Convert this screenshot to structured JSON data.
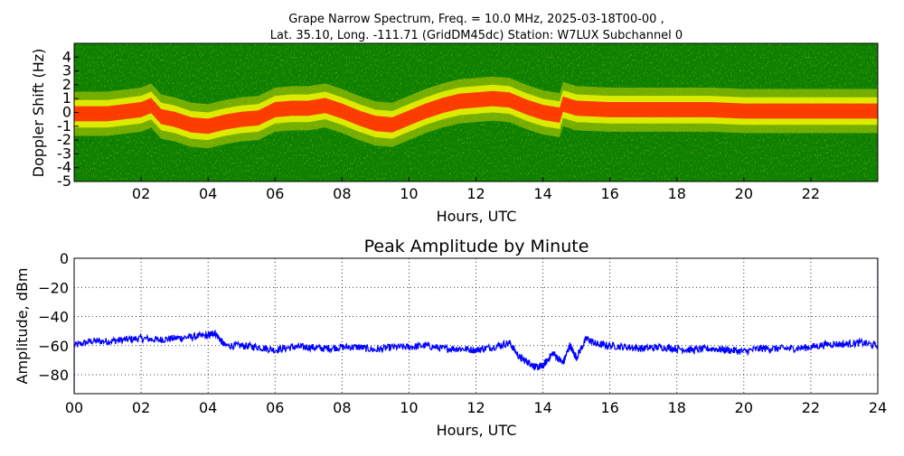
{
  "chart_data": [
    {
      "type": "heatmap",
      "title_line1": "Grape Narrow Spectrum, Freq. = 10.0 MHz, 2025-03-18T00-00 ,",
      "title_line2": "Lat.  35.10, Long. -111.71 (GridDM45dc) Station: W7LUX Subchannel 0",
      "xlabel": "Hours, UTC",
      "ylabel": "Doppler Shift (Hz)",
      "xlim": [
        0,
        24
      ],
      "ylim": [
        -5,
        5
      ],
      "x_ticks": [
        "02",
        "04",
        "06",
        "08",
        "10",
        "12",
        "14",
        "16",
        "18",
        "20",
        "22"
      ],
      "y_ticks": [
        "4",
        "3",
        "2",
        "1",
        "0",
        "-1",
        "-2",
        "-3",
        "-4",
        "-5"
      ],
      "background_color": "#0d7f00",
      "signal_colors": [
        "#c8d400",
        "#ffff00",
        "#ff2a00"
      ],
      "peak_doppler": {
        "x": [
          0,
          1,
          2,
          2.3,
          2.6,
          3,
          3.5,
          4,
          4.5,
          5,
          5.5,
          6,
          6.5,
          7,
          7.5,
          8,
          8.5,
          9,
          9.5,
          10,
          10.5,
          11,
          11.5,
          12,
          12.5,
          13,
          13.5,
          14,
          14.5,
          14.6,
          15,
          16,
          17,
          18,
          19,
          20,
          21,
          22,
          23,
          24
        ],
        "y": [
          -0.1,
          -0.1,
          0.2,
          0.5,
          -0.3,
          -0.5,
          -0.9,
          -1.0,
          -0.7,
          -0.5,
          -0.4,
          0.2,
          0.3,
          0.3,
          0.5,
          0.1,
          -0.4,
          -0.8,
          -0.9,
          -0.4,
          0.1,
          0.5,
          0.8,
          0.9,
          1.0,
          0.9,
          0.4,
          0.0,
          -0.2,
          0.6,
          0.3,
          0.2,
          0.2,
          0.2,
          0.2,
          0.1,
          0.1,
          0.1,
          0.1,
          0.1
        ]
      }
    },
    {
      "type": "line",
      "title": "Peak Amplitude by Minute",
      "xlabel": "Hours, UTC",
      "ylabel": "Amplitude, dBm",
      "xlim": [
        0,
        24
      ],
      "ylim": [
        -93,
        0
      ],
      "grid": true,
      "x_ticks": [
        "00",
        "02",
        "04",
        "06",
        "08",
        "10",
        "12",
        "14",
        "16",
        "18",
        "20",
        "22",
        "24"
      ],
      "y_ticks": [
        "0",
        "−20",
        "−40",
        "−60",
        "−80"
      ],
      "line_color": "#0000ff",
      "series": [
        {
          "x": [
            0,
            0.5,
            1,
            1.5,
            2,
            2.5,
            3,
            3.5,
            4,
            4.2,
            4.5,
            5,
            5.5,
            6,
            6.5,
            7,
            7.5,
            8,
            8.5,
            9,
            9.5,
            10,
            10.5,
            11,
            11.5,
            12,
            12.5,
            13,
            13.3,
            13.6,
            13.8,
            14,
            14.3,
            14.6,
            14.8,
            15,
            15.3,
            15.6,
            16,
            16.5,
            17,
            17.5,
            18,
            18.5,
            19,
            19.5,
            20,
            20.5,
            21,
            21.5,
            22,
            22.5,
            23,
            23.5,
            24
          ],
          "y": [
            -60,
            -57,
            -57,
            -56,
            -55,
            -56,
            -55,
            -54,
            -53,
            -51,
            -60,
            -60,
            -61,
            -63,
            -61,
            -61,
            -62,
            -61,
            -61,
            -63,
            -61,
            -61,
            -60,
            -62,
            -62,
            -63,
            -61,
            -58,
            -68,
            -72,
            -75,
            -74,
            -65,
            -72,
            -60,
            -68,
            -55,
            -59,
            -60,
            -61,
            -62,
            -61,
            -62,
            -63,
            -62,
            -63,
            -64,
            -62,
            -62,
            -62,
            -61,
            -59,
            -59,
            -58,
            -60
          ]
        }
      ]
    }
  ]
}
